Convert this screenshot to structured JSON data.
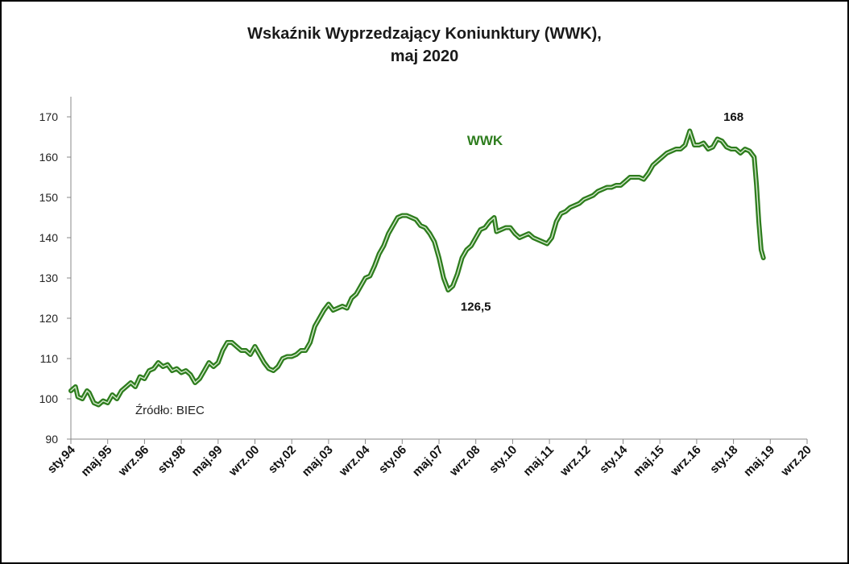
{
  "chart_data": {
    "type": "line",
    "title_line1": "Wskaźnik Wyprzedzający Koniunktury (WWK),",
    "title_line2": "maj 2020",
    "xlabel": "",
    "ylabel": "",
    "ylim": [
      90,
      170
    ],
    "yticks": [
      90,
      100,
      110,
      120,
      130,
      140,
      150,
      160,
      170
    ],
    "x_range_months": [
      0,
      316
    ],
    "x_tick_labels": [
      "sty.94",
      "maj.95",
      "wrz.96",
      "sty.98",
      "maj.99",
      "wrz.00",
      "sty.02",
      "maj.03",
      "wrz.04",
      "sty.06",
      "maj.07",
      "wrz.08",
      "sty.10",
      "maj.11",
      "wrz.12",
      "sty.14",
      "maj.15",
      "wrz.16",
      "sty.18",
      "maj.19",
      "wrz.20"
    ],
    "x_tick_months": [
      0,
      16,
      32,
      48,
      64,
      80,
      96,
      112,
      128,
      144,
      160,
      176,
      192,
      208,
      224,
      240,
      256,
      272,
      288,
      304,
      320
    ],
    "series": [
      {
        "name": "WWK",
        "color": "#2e7d1e",
        "points": [
          [
            0,
            102
          ],
          [
            2,
            103
          ],
          [
            3,
            100.5
          ],
          [
            5,
            100
          ],
          [
            7,
            102
          ],
          [
            8,
            101.5
          ],
          [
            10,
            99
          ],
          [
            12,
            98.5
          ],
          [
            14,
            99.5
          ],
          [
            16,
            99
          ],
          [
            18,
            101
          ],
          [
            20,
            100
          ],
          [
            22,
            102
          ],
          [
            24,
            103
          ],
          [
            26,
            104
          ],
          [
            28,
            103
          ],
          [
            30,
            105.5
          ],
          [
            32,
            105
          ],
          [
            34,
            107
          ],
          [
            36,
            107.5
          ],
          [
            38,
            109
          ],
          [
            40,
            108
          ],
          [
            42,
            108.5
          ],
          [
            44,
            107
          ],
          [
            46,
            107.5
          ],
          [
            48,
            106.5
          ],
          [
            50,
            107
          ],
          [
            52,
            106
          ],
          [
            54,
            104
          ],
          [
            56,
            105
          ],
          [
            58,
            107
          ],
          [
            60,
            109
          ],
          [
            62,
            108
          ],
          [
            64,
            109
          ],
          [
            66,
            112
          ],
          [
            68,
            114
          ],
          [
            70,
            114
          ],
          [
            72,
            113
          ],
          [
            74,
            112
          ],
          [
            76,
            112
          ],
          [
            78,
            111
          ],
          [
            80,
            113
          ],
          [
            82,
            111
          ],
          [
            84,
            109
          ],
          [
            86,
            107.5
          ],
          [
            88,
            107
          ],
          [
            90,
            108
          ],
          [
            92,
            110
          ],
          [
            94,
            110.5
          ],
          [
            96,
            110.5
          ],
          [
            98,
            111
          ],
          [
            100,
            112
          ],
          [
            102,
            112
          ],
          [
            104,
            114
          ],
          [
            106,
            118
          ],
          [
            108,
            120
          ],
          [
            110,
            122
          ],
          [
            112,
            123.5
          ],
          [
            114,
            122
          ],
          [
            116,
            122.5
          ],
          [
            118,
            123
          ],
          [
            120,
            122.5
          ],
          [
            122,
            125
          ],
          [
            124,
            126
          ],
          [
            126,
            128
          ],
          [
            128,
            130
          ],
          [
            130,
            130.5
          ],
          [
            132,
            133
          ],
          [
            134,
            136
          ],
          [
            136,
            138
          ],
          [
            138,
            141
          ],
          [
            140,
            143
          ],
          [
            142,
            145
          ],
          [
            144,
            145.5
          ],
          [
            146,
            145.5
          ],
          [
            148,
            145
          ],
          [
            150,
            144.5
          ],
          [
            152,
            143
          ],
          [
            154,
            142.5
          ],
          [
            156,
            141
          ],
          [
            158,
            139
          ],
          [
            160,
            135
          ],
          [
            162,
            130
          ],
          [
            164,
            127
          ],
          [
            166,
            128
          ],
          [
            168,
            131
          ],
          [
            170,
            135
          ],
          [
            172,
            137
          ],
          [
            174,
            138
          ],
          [
            176,
            140
          ],
          [
            178,
            142
          ],
          [
            180,
            142.5
          ],
          [
            182,
            144
          ],
          [
            184,
            145
          ],
          [
            185,
            141.5
          ],
          [
            187,
            142
          ],
          [
            189,
            142.5
          ],
          [
            191,
            142.5
          ],
          [
            193,
            141
          ],
          [
            195,
            140
          ],
          [
            197,
            140.5
          ],
          [
            199,
            141
          ],
          [
            201,
            140
          ],
          [
            203,
            139.5
          ],
          [
            205,
            139
          ],
          [
            207,
            138.5
          ],
          [
            209,
            140
          ],
          [
            211,
            144
          ],
          [
            213,
            146
          ],
          [
            215,
            146.5
          ],
          [
            217,
            147.5
          ],
          [
            219,
            148
          ],
          [
            221,
            148.5
          ],
          [
            223,
            149.5
          ],
          [
            225,
            150
          ],
          [
            227,
            150.5
          ],
          [
            229,
            151.5
          ],
          [
            231,
            152
          ],
          [
            233,
            152.5
          ],
          [
            235,
            152.5
          ],
          [
            237,
            153
          ],
          [
            239,
            153
          ],
          [
            241,
            154
          ],
          [
            243,
            155
          ],
          [
            245,
            155
          ],
          [
            247,
            155
          ],
          [
            249,
            154.5
          ],
          [
            251,
            156
          ],
          [
            253,
            158
          ],
          [
            255,
            159
          ],
          [
            257,
            160
          ],
          [
            259,
            161
          ],
          [
            261,
            161.5
          ],
          [
            263,
            162
          ],
          [
            265,
            162
          ],
          [
            267,
            163
          ],
          [
            269,
            166.5
          ],
          [
            271,
            163
          ],
          [
            273,
            163
          ],
          [
            275,
            163.5
          ],
          [
            277,
            162
          ],
          [
            279,
            162.5
          ],
          [
            281,
            164.5
          ],
          [
            283,
            164
          ],
          [
            285,
            162.5
          ],
          [
            287,
            162
          ],
          [
            289,
            162
          ],
          [
            291,
            161
          ],
          [
            293,
            162
          ],
          [
            295,
            161.5
          ],
          [
            297,
            160
          ],
          [
            298,
            153
          ],
          [
            299,
            144
          ],
          [
            300,
            137
          ],
          [
            301,
            135
          ]
        ]
      }
    ],
    "annotations": [
      {
        "text": "168",
        "x_month": 288,
        "y": 168
      },
      {
        "text": "126,5",
        "x_month": 176,
        "y": 126.5
      }
    ],
    "series_label": "WWK",
    "source_note": "Źródło: BIEC"
  }
}
